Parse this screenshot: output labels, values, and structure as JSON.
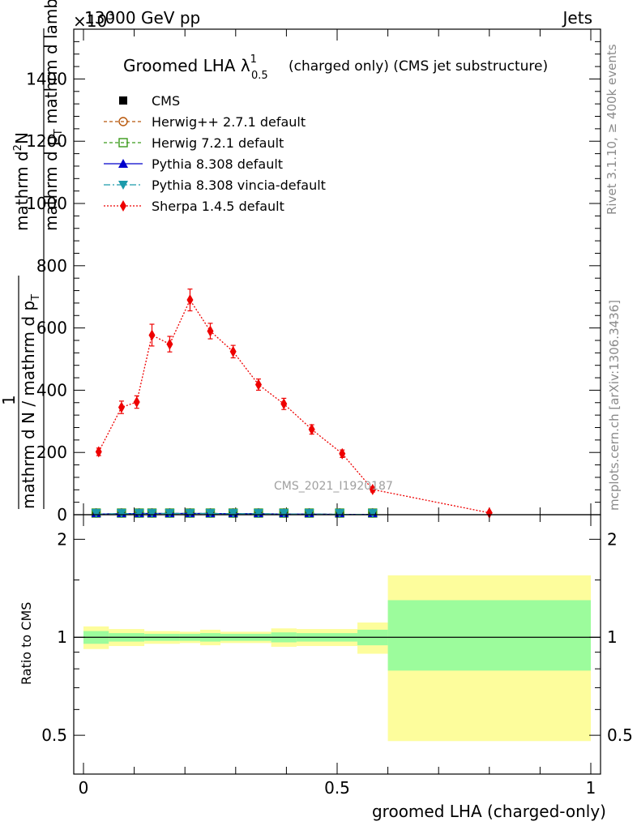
{
  "header": {
    "left": "13000 GeV pp",
    "right": "Jets",
    "multiplier": "×10",
    "multiplier_exp": "3"
  },
  "side_labels": {
    "rivet": "Rivet 3.1.10, ≥ 400k events",
    "mcplots": "mcplots.cern.ch [arXiv:1306.3436]"
  },
  "watermark": "CMS_2021_I1920187",
  "chart_data": [
    {
      "type": "line",
      "title": "Groomed LHA λ",
      "title_sup": "1",
      "title_sub": "0.5",
      "title_suffix": "(charged only) (CMS jet substructure)",
      "xlabel": "groomed LHA (charged-only)",
      "ylabel_numerator": "mathrm d²N",
      "ylabel_denominator": "mathrm d p_T mathrm d lambda",
      "ylabel_numerator_parts": [
        "mathrm d",
        "2",
        "N"
      ],
      "ylabel_denominator_parts": [
        "mathrm d p",
        "T",
        " mathrm d lambda"
      ],
      "ylabel_prefactor_num": "1",
      "ylabel_prefactor_den": "mathrm d N / mathrm d p",
      "ylabel_prefactor_den_sub": "T",
      "xlim": [
        0,
        1
      ],
      "ylim": [
        0,
        1560
      ],
      "y_ticks": [
        0,
        200,
        400,
        600,
        800,
        1000,
        1200,
        1400
      ],
      "y_tick_labels": [
        "0",
        "200",
        "400",
        "600",
        "800",
        "1000",
        "1200",
        "1400"
      ],
      "legend_position": "top-left",
      "bins": [
        0.0,
        0.05,
        0.1,
        0.12,
        0.15,
        0.19,
        0.23,
        0.27,
        0.32,
        0.37,
        0.42,
        0.47,
        0.54,
        0.6,
        1.0
      ],
      "series": [
        {
          "name": "CMS",
          "style": "data",
          "color": "#000000",
          "x": [
            0.025,
            0.075,
            0.11,
            0.135,
            0.17,
            0.21,
            0.25,
            0.295,
            0.345,
            0.395,
            0.445,
            0.505,
            0.57
          ],
          "y": [
            2,
            3,
            4,
            4,
            4,
            4,
            4,
            3,
            3,
            2,
            2,
            1,
            1
          ]
        },
        {
          "name": "Herwig++ 2.7.1 default",
          "style": "herwigpp",
          "color": "#b8580b",
          "x": [
            0.025,
            0.075,
            0.11,
            0.135,
            0.17,
            0.21,
            0.25,
            0.295,
            0.345,
            0.395,
            0.445,
            0.505,
            0.57
          ],
          "y": [
            2,
            3,
            4,
            4,
            4,
            4,
            4,
            3,
            3,
            2,
            2,
            1,
            1
          ]
        },
        {
          "name": "Herwig 7.2.1 default",
          "style": "herwig7",
          "color": "#3a9a1a",
          "x": [
            0.025,
            0.075,
            0.11,
            0.135,
            0.17,
            0.21,
            0.25,
            0.295,
            0.345,
            0.395,
            0.445,
            0.505,
            0.57
          ],
          "y": [
            2,
            3,
            4,
            4,
            4,
            4,
            4,
            3,
            3,
            2,
            2,
            1,
            1
          ]
        },
        {
          "name": "Pythia 8.308 default",
          "style": "pythia",
          "color": "#0000cc",
          "x": [
            0.025,
            0.075,
            0.11,
            0.135,
            0.17,
            0.21,
            0.25,
            0.295,
            0.345,
            0.395,
            0.445,
            0.505,
            0.57
          ],
          "y": [
            2,
            3,
            4,
            4,
            4,
            4,
            4,
            3,
            3,
            2,
            2,
            1,
            1
          ]
        },
        {
          "name": "Pythia 8.308 vincia-default",
          "style": "vincia",
          "color": "#1b9aaa",
          "x": [
            0.025,
            0.075,
            0.11,
            0.135,
            0.17,
            0.21,
            0.25,
            0.295,
            0.345,
            0.395,
            0.445,
            0.505,
            0.57
          ],
          "y": [
            2,
            3,
            4,
            4,
            4,
            4,
            4,
            3,
            3,
            2,
            2,
            1,
            1
          ]
        },
        {
          "name": "Sherpa 1.4.5 default",
          "style": "sherpa",
          "color": "#ee0000",
          "x": [
            0.03,
            0.075,
            0.105,
            0.135,
            0.17,
            0.21,
            0.25,
            0.295,
            0.345,
            0.395,
            0.45,
            0.51,
            0.57,
            0.8
          ],
          "y": [
            202,
            345,
            362,
            577,
            548,
            690,
            590,
            524,
            418,
            356,
            274,
            196,
            81,
            6
          ],
          "yerr": [
            12,
            20,
            20,
            35,
            25,
            35,
            25,
            20,
            18,
            18,
            15,
            12,
            8,
            2
          ]
        }
      ]
    },
    {
      "type": "area",
      "ylabel": "Ratio to CMS",
      "xlim": [
        0,
        1
      ],
      "ylim": [
        0.38,
        2.38
      ],
      "y_ticks": [
        0.5,
        1,
        2
      ],
      "y_tick_labels": [
        "0.5",
        "1",
        "2"
      ],
      "x_ticks": [
        0,
        0.5,
        1
      ],
      "x_tick_labels": [
        "0",
        "0.5",
        "1"
      ],
      "band_colors": {
        "inner": "#9cfc9c",
        "outer": "#fdfd9c"
      },
      "bands": [
        {
          "x0": 0.0,
          "x1": 0.05,
          "inner": [
            0.955,
            1.045
          ],
          "outer": [
            0.92,
            1.08
          ]
        },
        {
          "x0": 0.05,
          "x1": 0.12,
          "inner": [
            0.97,
            1.03
          ],
          "outer": [
            0.94,
            1.06
          ]
        },
        {
          "x0": 0.12,
          "x1": 0.19,
          "inner": [
            0.975,
            1.025
          ],
          "outer": [
            0.955,
            1.045
          ]
        },
        {
          "x0": 0.19,
          "x1": 0.23,
          "inner": [
            0.975,
            1.025
          ],
          "outer": [
            0.96,
            1.04
          ]
        },
        {
          "x0": 0.23,
          "x1": 0.27,
          "inner": [
            0.97,
            1.03
          ],
          "outer": [
            0.945,
            1.055
          ]
        },
        {
          "x0": 0.27,
          "x1": 0.37,
          "inner": [
            0.975,
            1.025
          ],
          "outer": [
            0.96,
            1.04
          ]
        },
        {
          "x0": 0.37,
          "x1": 0.42,
          "inner": [
            0.965,
            1.035
          ],
          "outer": [
            0.935,
            1.065
          ]
        },
        {
          "x0": 0.42,
          "x1": 0.54,
          "inner": [
            0.97,
            1.03
          ],
          "outer": [
            0.94,
            1.06
          ]
        },
        {
          "x0": 0.54,
          "x1": 0.6,
          "inner": [
            0.945,
            1.055
          ],
          "outer": [
            0.89,
            1.11
          ]
        },
        {
          "x0": 0.6,
          "x1": 1.0,
          "inner": [
            0.79,
            1.3
          ],
          "outer": [
            0.48,
            1.55
          ]
        }
      ]
    }
  ]
}
